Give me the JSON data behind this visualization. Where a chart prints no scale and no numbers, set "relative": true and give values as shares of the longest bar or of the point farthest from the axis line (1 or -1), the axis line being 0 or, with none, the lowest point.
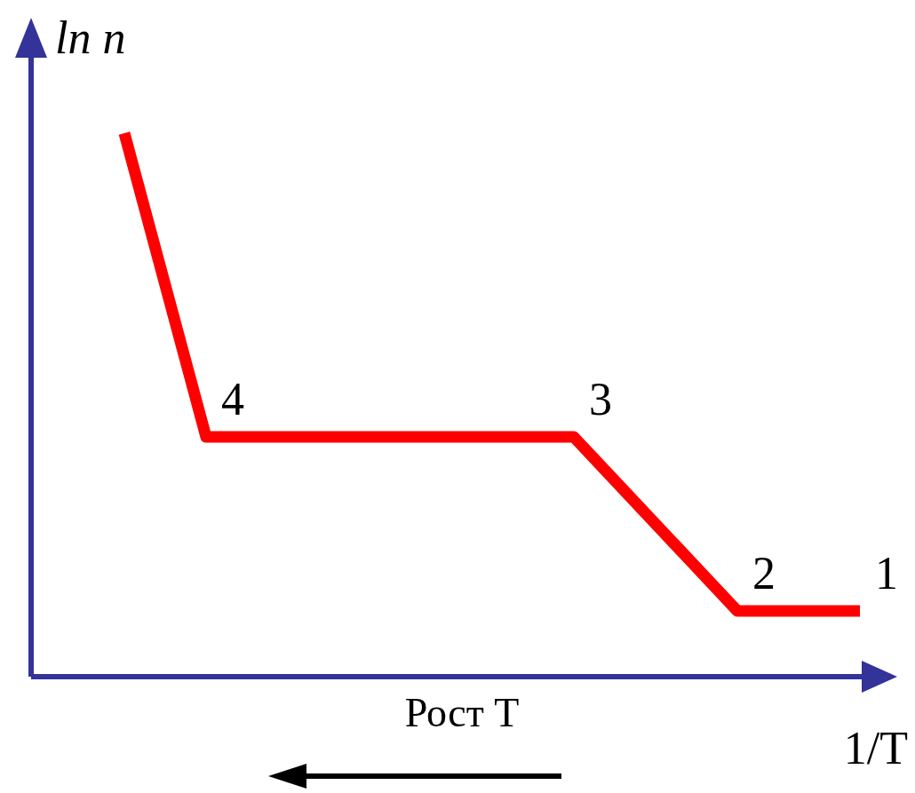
{
  "chart_data": {
    "type": "line",
    "xlabel": "1/T",
    "ylabel": "ln n",
    "relative": true,
    "categories": [
      null,
      null,
      null,
      null,
      null,
      null,
      null,
      null,
      null,
      null,
      null,
      null,
      null,
      null,
      null,
      null,
      null,
      null,
      null
    ],
    "series": [
      {
        "color": "#ff0000",
        "values": [
          1,
          null,
          0.441,
          null,
          null,
          null,
          null,
          null,
          null,
          null,
          null,
          0.441,
          null,
          null,
          null,
          0.121,
          null,
          null,
          0.121
        ]
      }
    ],
    "annotations": [
      "4",
      "3",
      "2",
      "1",
      "Рост T"
    ]
  }
}
